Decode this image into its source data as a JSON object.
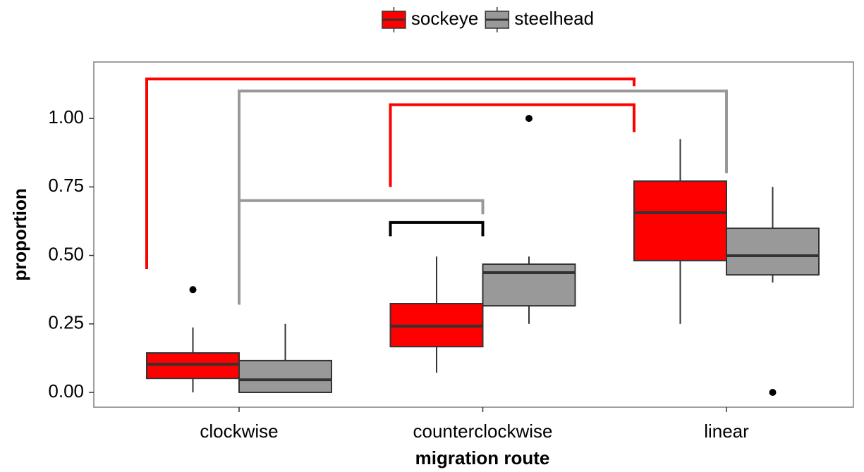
{
  "chart_data": {
    "type": "box",
    "x_label": "migration route",
    "y_label": "proportion",
    "categories": [
      "clockwise",
      "counterclockwise",
      "linear"
    ],
    "ylim": [
      -0.054,
      1.206
    ],
    "yticks": [
      {
        "value": 0,
        "label": "0.00"
      },
      {
        "value": 0.25,
        "label": "0.25"
      },
      {
        "value": 0.5,
        "label": "0.50"
      },
      {
        "value": 0.75,
        "label": "0.75"
      },
      {
        "value": 1,
        "label": "1.00"
      }
    ],
    "grid": false,
    "legend": "top",
    "series": [
      {
        "name": "sockeye",
        "color": "#ff0000",
        "boxes": [
          {
            "low": 0,
            "q1": 0.051,
            "median": 0.103,
            "q3": 0.144,
            "high": 0.237,
            "outliers": [
              0.375
            ]
          },
          {
            "low": 0.072,
            "q1": 0.167,
            "median": 0.242,
            "q3": 0.324,
            "high": 0.496,
            "outliers": []
          },
          {
            "low": 0.25,
            "q1": 0.481,
            "median": 0.656,
            "q3": 0.771,
            "high": 0.925,
            "outliers": []
          }
        ]
      },
      {
        "name": "steelhead",
        "color": "#999999",
        "boxes": [
          {
            "low": 0,
            "q1": 0,
            "median": 0.046,
            "q3": 0.116,
            "high": 0.25,
            "outliers": []
          },
          {
            "low": 0.25,
            "q1": 0.316,
            "median": 0.437,
            "q3": 0.468,
            "high": 0.496,
            "outliers": [
              1
            ]
          },
          {
            "low": 0.401,
            "q1": 0.429,
            "median": 0.499,
            "q3": 0.599,
            "high": 0.75,
            "outliers": [
              0
            ]
          }
        ]
      }
    ],
    "brackets": [
      {
        "color": "#ff0000",
        "left": [
          0,
          0
        ],
        "right": [
          2,
          0
        ],
        "left_y": 0.45,
        "right_y": 1.118,
        "top": 1.144
      },
      {
        "color": "#999999",
        "left": [
          0,
          1
        ],
        "right": [
          2,
          1
        ],
        "left_y": 0.32,
        "right_y": 0.8,
        "top": 1.1
      },
      {
        "color": "#ff0000",
        "left": [
          1,
          0
        ],
        "right": [
          2,
          0
        ],
        "left_y": 0.75,
        "right_y": 0.95,
        "top": 1.05
      },
      {
        "color": "#999999",
        "left": [
          0,
          1
        ],
        "right": [
          1,
          1
        ],
        "left_y": 0.75,
        "right_y": 0.65,
        "top": 0.7
      },
      {
        "color": "#000000",
        "left": [
          1,
          0
        ],
        "right": [
          1,
          1
        ],
        "left_y": 0.57,
        "right_y": 0.57,
        "top": 0.62
      }
    ]
  }
}
